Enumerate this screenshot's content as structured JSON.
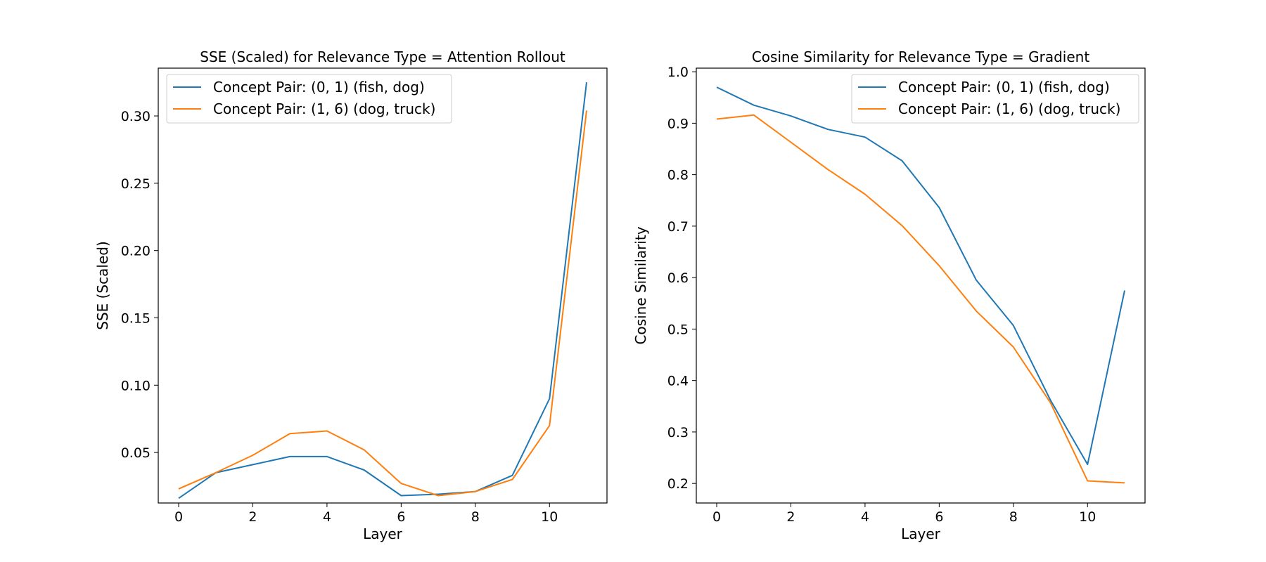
{
  "chart_data": [
    {
      "type": "line",
      "title": "SSE (Scaled) for Relevance Type = Attention Rollout",
      "xlabel": "Layer",
      "ylabel": "SSE (Scaled)",
      "xlim": [
        -0.55,
        11.55
      ],
      "ylim": [
        0.0125,
        0.3355
      ],
      "xticks": [
        0,
        2,
        4,
        6,
        8,
        10
      ],
      "xtick_labels": [
        "0",
        "2",
        "4",
        "6",
        "8",
        "10"
      ],
      "yticks": [
        0.05,
        0.1,
        0.15,
        0.2,
        0.25,
        0.3
      ],
      "ytick_labels": [
        "0.05",
        "0.10",
        "0.15",
        "0.20",
        "0.25",
        "0.30"
      ],
      "grid": false,
      "legend_position": "upper left",
      "x": [
        0,
        1,
        2,
        3,
        4,
        5,
        6,
        7,
        8,
        9,
        10,
        11
      ],
      "series": [
        {
          "name": "Concept Pair: (0, 1) (fish, dog)",
          "color": "#1f77b4",
          "values": [
            0.016,
            0.035,
            0.041,
            0.047,
            0.047,
            0.037,
            0.018,
            0.019,
            0.021,
            0.033,
            0.09,
            0.325
          ]
        },
        {
          "name": "Concept Pair: (1, 6) (dog, truck)",
          "color": "#ff7f0e",
          "values": [
            0.023,
            0.035,
            0.048,
            0.064,
            0.066,
            0.052,
            0.027,
            0.018,
            0.021,
            0.03,
            0.07,
            0.304
          ]
        }
      ]
    },
    {
      "type": "line",
      "title": "Cosine Similarity for Relevance Type = Gradient",
      "xlabel": "Layer",
      "ylabel": "Cosine Similarity",
      "xlim": [
        -0.55,
        11.55
      ],
      "ylim": [
        0.162,
        1.007
      ],
      "xticks": [
        0,
        2,
        4,
        6,
        8,
        10
      ],
      "xtick_labels": [
        "0",
        "2",
        "4",
        "6",
        "8",
        "10"
      ],
      "yticks": [
        0.2,
        0.3,
        0.4,
        0.5,
        0.6,
        0.7,
        0.8,
        0.9,
        1.0
      ],
      "ytick_labels": [
        "0.2",
        "0.3",
        "0.4",
        "0.5",
        "0.6",
        "0.7",
        "0.8",
        "0.9",
        "1.0"
      ],
      "grid": false,
      "legend_position": "upper right",
      "x": [
        0,
        1,
        2,
        3,
        4,
        5,
        6,
        7,
        8,
        9,
        10,
        11
      ],
      "series": [
        {
          "name": "Concept Pair: (0, 1) (fish, dog)",
          "color": "#1f77b4",
          "values": [
            0.97,
            0.935,
            0.914,
            0.888,
            0.873,
            0.827,
            0.736,
            0.595,
            0.507,
            0.362,
            0.237,
            0.575
          ]
        },
        {
          "name": "Concept Pair: (1, 6) (dog, truck)",
          "color": "#ff7f0e",
          "values": [
            0.908,
            0.916,
            0.863,
            0.81,
            0.762,
            0.701,
            0.623,
            0.535,
            0.465,
            0.357,
            0.205,
            0.201
          ]
        }
      ]
    }
  ]
}
